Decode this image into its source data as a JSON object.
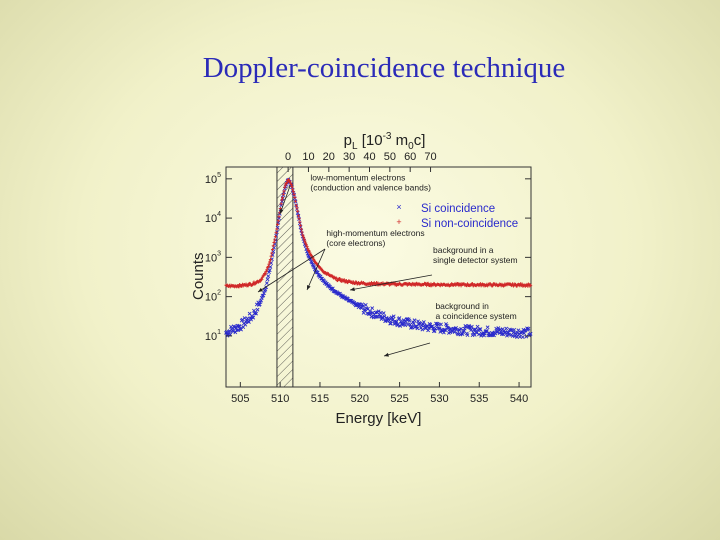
{
  "slide": {
    "title": "Doppler-coincidence technique"
  },
  "chart_data": {
    "type": "scatter",
    "xlabel": "Energy [keV]",
    "xlim": [
      503.2,
      541.5
    ],
    "x_ticks": [
      505,
      510,
      515,
      520,
      525,
      530,
      535,
      540
    ],
    "x_top_label_parts": [
      "p",
      "L",
      " [10",
      "-3",
      " m",
      "0",
      "c]"
    ],
    "x_top_ticks": [
      0,
      10,
      20,
      30,
      40,
      50,
      60,
      70
    ],
    "x_top_kev_per_unit": 0.2555,
    "ylabel": "Counts",
    "ylabel_parts": [
      "C",
      "o",
      "u",
      "n",
      "t",
      "s"
    ],
    "y_scale": "log",
    "ylim": [
      0.5,
      200000
    ],
    "y_ticks": [
      {
        "value": 10,
        "base": "10",
        "exp": "1"
      },
      {
        "value": 100,
        "base": "10",
        "exp": "2"
      },
      {
        "value": 1000,
        "base": "10",
        "exp": "3"
      },
      {
        "value": 10000,
        "base": "10",
        "exp": "4"
      },
      {
        "value": 100000,
        "base": "10",
        "exp": "5"
      }
    ],
    "grid": false,
    "shaded_region": {
      "x": [
        509.6,
        511.6
      ],
      "hatch": true
    },
    "series": [
      {
        "name": "Si coincidence",
        "marker": "×",
        "color": "#2a2acc",
        "points": [
          [
            503.2,
            12
          ],
          [
            505,
            18
          ],
          [
            506.5,
            32
          ],
          [
            507.5,
            70
          ],
          [
            508.2,
            170
          ],
          [
            508.8,
            600
          ],
          [
            509.5,
            3500
          ],
          [
            510.2,
            25000
          ],
          [
            510.6,
            60000
          ],
          [
            511,
            95000
          ],
          [
            511.4,
            70000
          ],
          [
            511.8,
            35000
          ],
          [
            512.3,
            11000
          ],
          [
            512.8,
            3500
          ],
          [
            513.5,
            1200
          ],
          [
            514.5,
            450
          ],
          [
            516,
            190
          ],
          [
            518,
            95
          ],
          [
            520,
            55
          ],
          [
            522,
            36
          ],
          [
            524,
            26
          ],
          [
            526,
            21
          ],
          [
            528,
            17.5
          ],
          [
            530,
            16
          ],
          [
            533,
            14
          ],
          [
            536,
            13
          ],
          [
            539,
            12.5
          ],
          [
            541.5,
            12
          ]
        ]
      },
      {
        "name": "Si non-coincidence",
        "marker": "+",
        "color": "#d02828",
        "points": [
          [
            503.2,
            185
          ],
          [
            505,
            190
          ],
          [
            506.5,
            210
          ],
          [
            507.5,
            260
          ],
          [
            508.2,
            400
          ],
          [
            508.8,
            900
          ],
          [
            509.5,
            4200
          ],
          [
            510.2,
            27000
          ],
          [
            510.6,
            62000
          ],
          [
            511,
            97000
          ],
          [
            511.4,
            72000
          ],
          [
            511.8,
            36000
          ],
          [
            512.3,
            11500
          ],
          [
            512.8,
            3900
          ],
          [
            513.5,
            1600
          ],
          [
            514.5,
            700
          ],
          [
            515.5,
            420
          ],
          [
            517,
            280
          ],
          [
            519,
            230
          ],
          [
            521,
            215
          ],
          [
            525,
            207
          ],
          [
            530,
            203
          ],
          [
            535,
            200
          ],
          [
            541.5,
            198
          ]
        ]
      }
    ],
    "annotations": [
      {
        "lines": [
          "low-momentum electrons",
          "(conduction and valence bands)"
        ],
        "x": 513.8,
        "y": 90000
      },
      {
        "lines": [
          "high-momentum electrons",
          "(core electrons)"
        ],
        "x": 515.8,
        "y": 3500
      },
      {
        "lines": [
          "background in a",
          "single detector system"
        ],
        "x": 529.2,
        "y": 1300
      },
      {
        "lines": [
          "background in",
          "a coincidence system"
        ],
        "x": 529.5,
        "y": 48
      }
    ]
  }
}
